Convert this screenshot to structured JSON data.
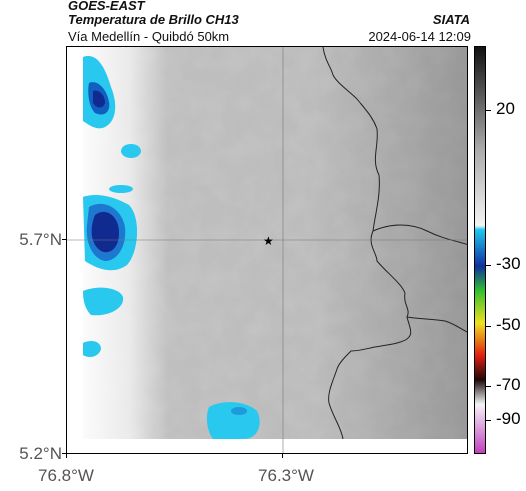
{
  "header": {
    "satellite": "GOES-EAST",
    "product": "Temperatura de Brillo CH13",
    "region": "Vía Medellín - Quibdó 50km",
    "organization": "SIATA",
    "datetime": "2024-06-14 12:09"
  },
  "map": {
    "y_ticks": [
      "5.7°N",
      "5.2°N"
    ],
    "x_ticks": [
      "76.8°W",
      "76.3°W"
    ],
    "marker_icon": "star-icon",
    "gridlines": true
  },
  "colorbar": {
    "labels": [
      "20",
      "-30",
      "-50",
      "-70",
      "-90"
    ],
    "colors": {
      "warm_top": "#111111",
      "mid_gray": "#aaaaaa",
      "light": "#f4f4f4",
      "cyan": "#1ec8f0",
      "blue": "#1030a0",
      "green": "#30c030",
      "yellow": "#f0e020",
      "red": "#e02010",
      "dark": "#200808",
      "magenta": "#c040c0"
    }
  }
}
